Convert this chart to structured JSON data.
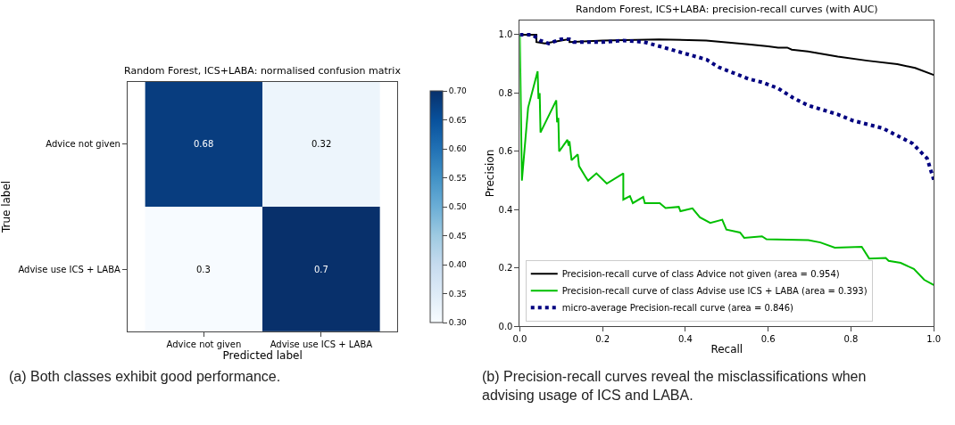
{
  "chart_data": [
    {
      "type": "heatmap",
      "title": "Random Forest, ICS+LABA: normalised confusion matrix",
      "xlabel": "Predicted label",
      "ylabel": "True label",
      "categories": [
        "Advice not given",
        "Advise use ICS + LABA"
      ],
      "y_categories": [
        "Advice not given",
        "Advise use ICS + LABA"
      ],
      "cells": [
        [
          0.68,
          0.32
        ],
        [
          0.3,
          0.7
        ]
      ],
      "clim": [
        0.3,
        0.7
      ],
      "cticks": [
        {
          "value": 0.3,
          "label": "0.30"
        },
        {
          "value": 0.35,
          "label": "0.35"
        },
        {
          "value": 0.4,
          "label": "0.40"
        },
        {
          "value": 0.45,
          "label": "0.45"
        },
        {
          "value": 0.5,
          "label": "0.50"
        },
        {
          "value": 0.55,
          "label": "0.55"
        },
        {
          "value": 0.6,
          "label": "0.60"
        },
        {
          "value": 0.65,
          "label": "0.65"
        },
        {
          "value": 0.7,
          "label": "0.70"
        }
      ],
      "data_labels": true,
      "annotations": [
        "(a) Both classes exhibit good performance."
      ]
    },
    {
      "type": "line",
      "title": "Random Forest, ICS+LABA: precision-recall curves (with AUC)",
      "xlabel": "Recall",
      "ylabel": "Precision",
      "xlim": [
        0,
        1
      ],
      "ylim": [
        0,
        1.05
      ],
      "xticks": [
        {
          "value": 0,
          "label": "0.0"
        },
        {
          "value": 0.2,
          "label": "0.2"
        },
        {
          "value": 0.4,
          "label": "0.4"
        },
        {
          "value": 0.6,
          "label": "0.6"
        },
        {
          "value": 0.8,
          "label": "0.8"
        },
        {
          "value": 1,
          "label": "1.0"
        }
      ],
      "yticks": [
        {
          "value": 0,
          "label": "0.0"
        },
        {
          "value": 0.2,
          "label": "0.2"
        },
        {
          "value": 0.4,
          "label": "0.4"
        },
        {
          "value": 0.6,
          "label": "0.6"
        },
        {
          "value": 0.8,
          "label": "0.8"
        },
        {
          "value": 1,
          "label": "1.0"
        }
      ],
      "legend": "bottom left",
      "marker": "none",
      "series": [
        {
          "name": "Precision-recall curve of class Advice not given (area = 0.954)",
          "color": "#000000",
          "line_style": "solid",
          "x": [
            0,
            0.04,
            0.04,
            0.06,
            0.1,
            0.12,
            0.12,
            0.2,
            0.336,
            0.45,
            0.552,
            0.6,
            0.624,
            0.646,
            0.657,
            0.696,
            0.768,
            0.84,
            0.912,
            0.955,
            1.0
          ],
          "values": [
            1.0,
            1.0,
            0.975,
            0.97,
            0.98,
            0.985,
            0.975,
            0.98,
            0.984,
            0.98,
            0.967,
            0.96,
            0.956,
            0.956,
            0.949,
            0.943,
            0.925,
            0.911,
            0.899,
            0.886,
            0.862
          ]
        },
        {
          "name": "Precision-recall curve of class Advise use ICS + LABA (area = 0.393)",
          "color": "#00bf00",
          "line_style": "solid",
          "x": [
            0,
            0.005,
            0.02,
            0.043,
            0.045,
            0.048,
            0.05,
            0.088,
            0.09,
            0.093,
            0.095,
            0.115,
            0.118,
            0.12,
            0.125,
            0.14,
            0.143,
            0.16,
            0.165,
            0.185,
            0.21,
            0.25,
            0.25,
            0.266,
            0.273,
            0.298,
            0.302,
            0.338,
            0.352,
            0.384,
            0.388,
            0.417,
            0.435,
            0.46,
            0.489,
            0.499,
            0.532,
            0.542,
            0.585,
            0.596,
            0.697,
            0.726,
            0.761,
            0.826,
            0.844,
            0.884,
            0.891,
            0.92,
            0.952,
            0.977,
            1.0
          ],
          "values": [
            1.0,
            0.5,
            0.75,
            0.875,
            0.78,
            0.8,
            0.665,
            0.775,
            0.7,
            0.715,
            0.6,
            0.64,
            0.62,
            0.635,
            0.57,
            0.59,
            0.55,
            0.51,
            0.5,
            0.525,
            0.49,
            0.525,
            0.435,
            0.447,
            0.423,
            0.444,
            0.423,
            0.423,
            0.406,
            0.41,
            0.395,
            0.405,
            0.374,
            0.355,
            0.366,
            0.332,
            0.322,
            0.304,
            0.309,
            0.299,
            0.296,
            0.288,
            0.27,
            0.273,
            0.233,
            0.235,
            0.225,
            0.218,
            0.197,
            0.16,
            0.142
          ]
        },
        {
          "name": "micro-average Precision-recall curve (area = 0.846)",
          "color": "#000080",
          "line_style": "dotted",
          "x": [
            0,
            0.03,
            0.05,
            0.07,
            0.1,
            0.12,
            0.13,
            0.2,
            0.25,
            0.3,
            0.336,
            0.408,
            0.451,
            0.48,
            0.552,
            0.588,
            0.624,
            0.66,
            0.696,
            0.768,
            0.804,
            0.84,
            0.876,
            0.912,
            0.948,
            0.984,
            1.0
          ],
          "values": [
            1.0,
            1.0,
            0.98,
            0.97,
            0.985,
            0.985,
            0.975,
            0.975,
            0.98,
            0.975,
            0.961,
            0.932,
            0.915,
            0.889,
            0.849,
            0.836,
            0.816,
            0.784,
            0.758,
            0.727,
            0.706,
            0.693,
            0.68,
            0.654,
            0.628,
            0.576,
            0.503
          ]
        }
      ],
      "annotations": [
        "(b) Precision-recall curves reveal the misclassifications when advising usage of ICS and LABA."
      ]
    }
  ]
}
